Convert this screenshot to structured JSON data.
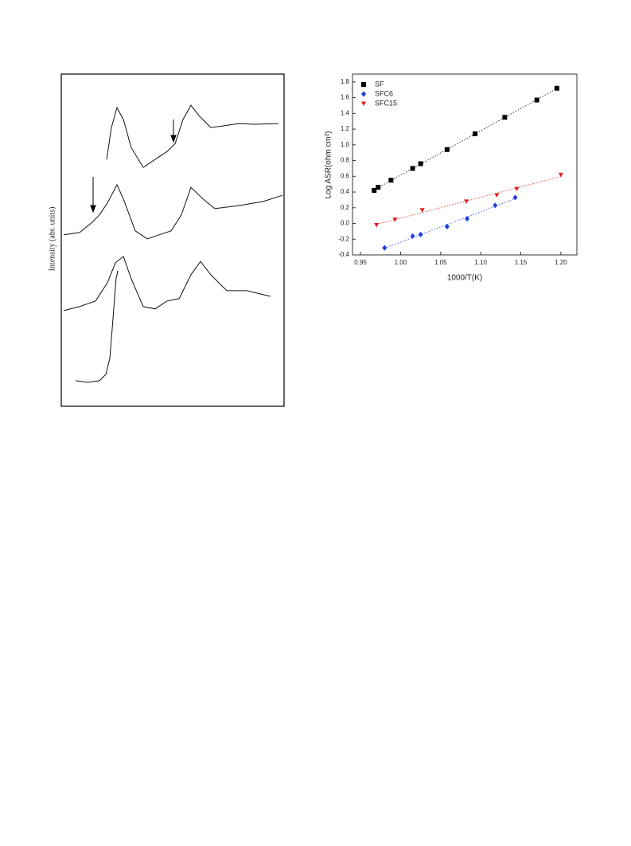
{
  "chart_data": [
    {
      "type": "line",
      "ylabel": "Intensity (abr. units)",
      "xlim": [
        0,
        100
      ],
      "ylim": [
        0,
        100
      ],
      "series": [
        {
          "color": "#111111",
          "x": [
            20.4,
            22.5,
            25,
            27.9,
            31.4,
            36.8,
            42.1,
            47.5,
            51.1,
            54.6,
            58.2,
            61.8,
            67.1,
            72.5,
            79.6,
            86.8,
            97.5
          ],
          "values": [
            74.3,
            83.9,
            89.9,
            86.3,
            77.9,
            71.9,
            74.3,
            76.7,
            79.1,
            86.3,
            90.6,
            87.5,
            83.9,
            84.4,
            85.1,
            84.9,
            85.1
          ]
        },
        {
          "color": "#111111",
          "x": [
            1.1,
            8.2,
            13.6,
            17.1,
            20.7,
            25,
            27.9,
            33.2,
            38.6,
            43.9,
            49.3,
            53.9,
            58.2,
            63.6,
            68.9,
            79.6,
            90.4,
            99.3
          ],
          "values": [
            51.6,
            52.3,
            55.2,
            57.6,
            61.2,
            66.7,
            62.4,
            52.8,
            50.4,
            51.6,
            52.8,
            57.6,
            65.9,
            62.4,
            59.5,
            60.4,
            61.6,
            63.5
          ]
        },
        {
          "color": "#111111",
          "x": [
            1.1,
            8.2,
            15.4,
            20.7,
            24.3,
            27.9,
            31.4,
            36.8,
            42.1,
            47.5,
            52.9,
            58.2,
            62.5,
            67.1,
            74.3,
            83.2,
            93.9
          ],
          "values": [
            28.8,
            30,
            31.7,
            37.2,
            43.2,
            45.1,
            38.4,
            30,
            29.3,
            31.7,
            32.4,
            39.6,
            43.6,
            39.6,
            34.8,
            34.8,
            33.1
          ]
        },
        {
          "color": "#111111",
          "x": [
            6.4,
            11.8,
            17.1,
            20,
            21.8,
            23.2,
            24.6,
            25.4
          ],
          "values": [
            7.7,
            7.2,
            7.7,
            9.6,
            14.4,
            26.4,
            38.4,
            40.8
          ]
        }
      ]
    },
    {
      "type": "scatter",
      "xlabel": "1000/T(K)",
      "ylabel": "Log ASR(ohm cm²)",
      "xlim": [
        0.94,
        1.22
      ],
      "ylim": [
        -0.4,
        1.9
      ],
      "xticks": [
        0.95,
        {
          "value": 1,
          "label": "1.00"
        },
        1.05,
        {
          "value": 1.1,
          "label": "1.10"
        },
        1.15,
        {
          "value": 1.2,
          "label": "1.20"
        }
      ],
      "yticks": [
        -0.4,
        -0.2,
        {
          "value": 0,
          "label": "0.0"
        },
        0.2,
        0.4,
        0.6,
        0.8,
        {
          "value": 1,
          "label": "1.0"
        },
        1.2,
        1.4,
        1.6,
        1.8
      ],
      "legend": "upper left",
      "fit_lines": true,
      "series": [
        {
          "name": "SF",
          "color": "#000000",
          "marker": "square",
          "x": [
            0.967,
            0.972,
            0.988,
            1.015,
            1.025,
            1.058,
            1.093,
            1.13,
            1.17,
            1.195
          ],
          "values": [
            0.42,
            0.46,
            0.55,
            0.7,
            0.76,
            0.94,
            1.14,
            1.35,
            1.57,
            1.72
          ]
        },
        {
          "name": "SFC6",
          "color": "#1f3fe0",
          "marker": "diamond",
          "x": [
            0.98,
            1.015,
            1.025,
            1.058,
            1.083,
            1.118,
            1.143
          ],
          "values": [
            -0.31,
            -0.16,
            -0.14,
            -0.04,
            0.06,
            0.23,
            0.33
          ]
        },
        {
          "name": "SFC15",
          "color": "#e02020",
          "marker": "triangle-down",
          "x": [
            0.97,
            0.993,
            1.027,
            1.082,
            1.12,
            1.145,
            1.2
          ],
          "values": [
            -0.02,
            0.05,
            0.17,
            0.28,
            0.36,
            0.44,
            0.62
          ]
        }
      ]
    }
  ]
}
